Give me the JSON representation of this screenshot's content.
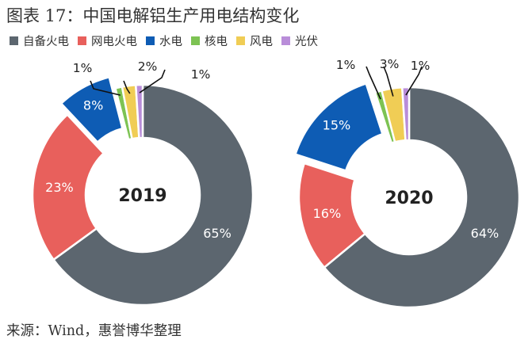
{
  "title": "图表 17：中国电解铝生产用电结构变化",
  "source": "来源：Wind，惠誉博华整理",
  "colors": {
    "自备火电": "#5c666f",
    "网电火电": "#e8605c",
    "水电": "#0e5cb4",
    "核电": "#7dc353",
    "风电": "#f0cd55",
    "光伏": "#b98dd9"
  },
  "chart_data": [
    {
      "type": "pie",
      "donut": true,
      "center_label": "2019",
      "categories": [
        "自备火电",
        "网电火电",
        "水电",
        "核电",
        "风电",
        "光伏"
      ],
      "values": [
        65,
        23,
        8,
        1,
        2,
        1
      ],
      "data_labels": [
        "65%",
        "23%",
        "8%",
        "1%",
        "2%",
        "1%"
      ],
      "legend": "top",
      "exploded": [
        "水电"
      ]
    },
    {
      "type": "pie",
      "donut": true,
      "center_label": "2020",
      "categories": [
        "自备火电",
        "网电火电",
        "水电",
        "核电",
        "风电",
        "光伏"
      ],
      "values": [
        64,
        16,
        15,
        1,
        3,
        1
      ],
      "data_labels": [
        "64%",
        "16%",
        "15%",
        "1%",
        "3%",
        "1%"
      ],
      "legend": "top",
      "exploded": [
        "水电"
      ]
    }
  ]
}
